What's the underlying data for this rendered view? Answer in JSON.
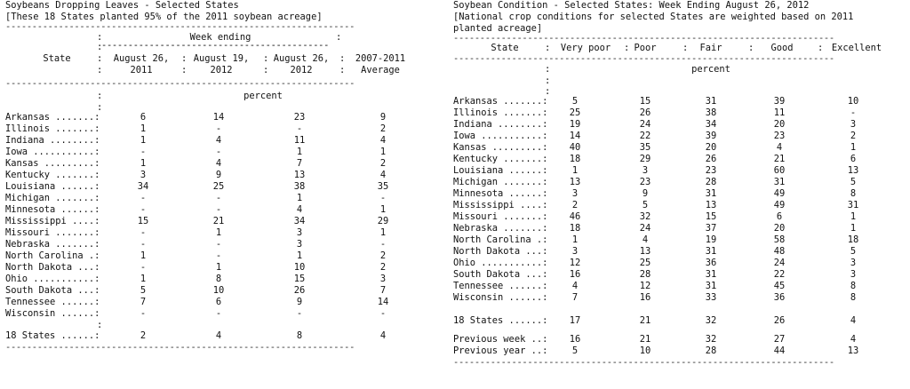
{
  "left": {
    "title": "Soybeans Dropping Leaves - Selected States",
    "subtitle": "[These 18 States planted 95% of the 2011 soybean acreage]",
    "dashes": "------------------------------------------------------------------",
    "header": {
      "state": "State",
      "week_ending": "Week ending",
      "sub_dashes": "-------------------------------------------",
      "col1_a": "August 26,",
      "col1_b": "2011",
      "col2_a": "August 19,",
      "col2_b": "2012",
      "col3_a": "August 26,",
      "col3_b": "2012",
      "col4_a": "2007-2011",
      "col4_b": "Average"
    },
    "unit": "percent",
    "rows": [
      {
        "label": "Arkansas .......:",
        "v": [
          "6",
          "14",
          "23",
          "9"
        ]
      },
      {
        "label": "Illinois .......:",
        "v": [
          "1",
          "-",
          "-",
          "2"
        ]
      },
      {
        "label": "Indiana ........:",
        "v": [
          "1",
          "4",
          "11",
          "4"
        ]
      },
      {
        "label": "Iowa ...........:",
        "v": [
          "-",
          "-",
          "1",
          "1"
        ]
      },
      {
        "label": "Kansas .........:",
        "v": [
          "1",
          "4",
          "7",
          "2"
        ]
      },
      {
        "label": "Kentucky .......:",
        "v": [
          "3",
          "9",
          "13",
          "4"
        ]
      },
      {
        "label": "Louisiana ......:",
        "v": [
          "34",
          "25",
          "38",
          "35"
        ]
      },
      {
        "label": "Michigan .......:",
        "v": [
          "-",
          "-",
          "1",
          "-"
        ]
      },
      {
        "label": "Minnesota ......:",
        "v": [
          "-",
          "-",
          "4",
          "1"
        ]
      },
      {
        "label": "Mississippi ....:",
        "v": [
          "15",
          "21",
          "34",
          "29"
        ]
      },
      {
        "label": "Missouri .......:",
        "v": [
          "-",
          "1",
          "3",
          "1"
        ]
      },
      {
        "label": "Nebraska .......:",
        "v": [
          "-",
          "-",
          "3",
          "-"
        ]
      },
      {
        "label": "North Carolina .:",
        "v": [
          "1",
          "-",
          "1",
          "2"
        ]
      },
      {
        "label": "North Dakota ...:",
        "v": [
          "-",
          "1",
          "10",
          "2"
        ]
      },
      {
        "label": "Ohio ...........:",
        "v": [
          "1",
          "8",
          "15",
          "3"
        ]
      },
      {
        "label": "South Dakota ...:",
        "v": [
          "5",
          "10",
          "26",
          "7"
        ]
      },
      {
        "label": "Tennessee ......:",
        "v": [
          "7",
          "6",
          "9",
          "14"
        ]
      },
      {
        "label": "Wisconsin ......:",
        "v": [
          "-",
          "-",
          "-",
          "-"
        ]
      }
    ],
    "total": {
      "label": "18 States ......:",
      "v": [
        "2",
        "4",
        "8",
        "4"
      ]
    }
  },
  "right": {
    "title": "Soybean Condition - Selected States: Week Ending August 26, 2012",
    "subtitle1": "[National crop conditions for selected States are weighted based on 2011",
    "subtitle2": "planted acreage]",
    "dashes": "------------------------------------------------------------------------",
    "header": {
      "state": "State",
      "c1": "Very poor",
      "c2": "Poor",
      "c3": "Fair",
      "c4": "Good",
      "c5": "Excellent"
    },
    "unit": "percent",
    "rows": [
      {
        "label": "Arkansas .......:",
        "v": [
          "5",
          "15",
          "31",
          "39",
          "10"
        ]
      },
      {
        "label": "Illinois .......:",
        "v": [
          "25",
          "26",
          "38",
          "11",
          "-"
        ]
      },
      {
        "label": "Indiana ........:",
        "v": [
          "19",
          "24",
          "34",
          "20",
          "3"
        ]
      },
      {
        "label": "Iowa ...........:",
        "v": [
          "14",
          "22",
          "39",
          "23",
          "2"
        ]
      },
      {
        "label": "Kansas .........:",
        "v": [
          "40",
          "35",
          "20",
          "4",
          "1"
        ]
      },
      {
        "label": "Kentucky .......:",
        "v": [
          "18",
          "29",
          "26",
          "21",
          "6"
        ]
      },
      {
        "label": "Louisiana ......:",
        "v": [
          "1",
          "3",
          "23",
          "60",
          "13"
        ]
      },
      {
        "label": "Michigan .......:",
        "v": [
          "13",
          "23",
          "28",
          "31",
          "5"
        ]
      },
      {
        "label": "Minnesota ......:",
        "v": [
          "3",
          "9",
          "31",
          "49",
          "8"
        ]
      },
      {
        "label": "Mississippi ....:",
        "v": [
          "2",
          "5",
          "13",
          "49",
          "31"
        ]
      },
      {
        "label": "Missouri .......:",
        "v": [
          "46",
          "32",
          "15",
          "6",
          "1"
        ]
      },
      {
        "label": "Nebraska .......:",
        "v": [
          "18",
          "24",
          "37",
          "20",
          "1"
        ]
      },
      {
        "label": "North Carolina .:",
        "v": [
          "1",
          "4",
          "19",
          "58",
          "18"
        ]
      },
      {
        "label": "North Dakota ...:",
        "v": [
          "3",
          "13",
          "31",
          "48",
          "5"
        ]
      },
      {
        "label": "Ohio ...........:",
        "v": [
          "12",
          "25",
          "36",
          "24",
          "3"
        ]
      },
      {
        "label": "South Dakota ...:",
        "v": [
          "16",
          "28",
          "31",
          "22",
          "3"
        ]
      },
      {
        "label": "Tennessee ......:",
        "v": [
          "4",
          "12",
          "31",
          "45",
          "8"
        ]
      },
      {
        "label": "Wisconsin ......:",
        "v": [
          "7",
          "16",
          "33",
          "36",
          "8"
        ]
      }
    ],
    "total": {
      "label": "18 States ......:",
      "v": [
        "17",
        "21",
        "32",
        "26",
        "4"
      ]
    },
    "prev_week": {
      "label": "Previous week ..:",
      "v": [
        "16",
        "21",
        "32",
        "27",
        "4"
      ]
    },
    "prev_year": {
      "label": "Previous year ..:",
      "v": [
        "5",
        "10",
        "28",
        "44",
        "13"
      ]
    }
  }
}
